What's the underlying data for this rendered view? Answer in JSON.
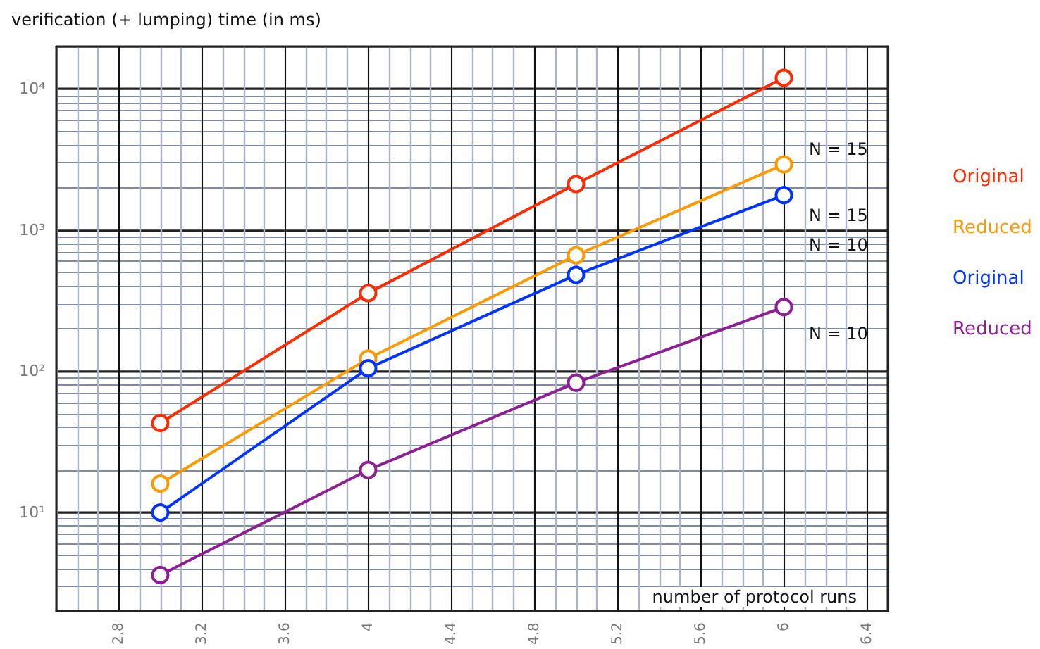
{
  "chart_data": {
    "type": "line",
    "ylabel": "verification (+ lumping) time (in ms)",
    "xlabel": "number of protocol runs",
    "x": [
      3,
      4,
      5,
      6
    ],
    "series": [
      {
        "name": "Original",
        "color": "#ff2a00",
        "values": [
          43,
          358,
          2120,
          12000
        ]
      },
      {
        "name": "Reduced",
        "color": "#ff9900",
        "values": [
          16,
          123,
          663,
          2920
        ]
      },
      {
        "name": "Original",
        "color": "#0033ff",
        "values": [
          10,
          105,
          482,
          1770
        ]
      },
      {
        "name": "Reduced",
        "color": "#8e1e96",
        "values": [
          3.6,
          20,
          83,
          285
        ]
      }
    ],
    "annotations": [
      "N = 15",
      "N = 15",
      "N = 10",
      "N = 10"
    ],
    "xlim": [
      2.5,
      6.5
    ],
    "xticks": [
      2.8,
      3.2,
      3.6,
      4,
      4.4,
      4.8,
      5.2,
      5.6,
      6,
      6.4
    ],
    "ylim": [
      2,
      20000
    ],
    "log": "y",
    "yticks": [
      {
        "value": 10,
        "label": "10¹"
      },
      {
        "value": 100,
        "label": "10²"
      },
      {
        "value": 1000,
        "label": "10³"
      },
      {
        "value": 10000,
        "label": "10⁴"
      }
    ],
    "grid": true,
    "legend": "right",
    "marker": "circle",
    "line_style": "solid"
  }
}
